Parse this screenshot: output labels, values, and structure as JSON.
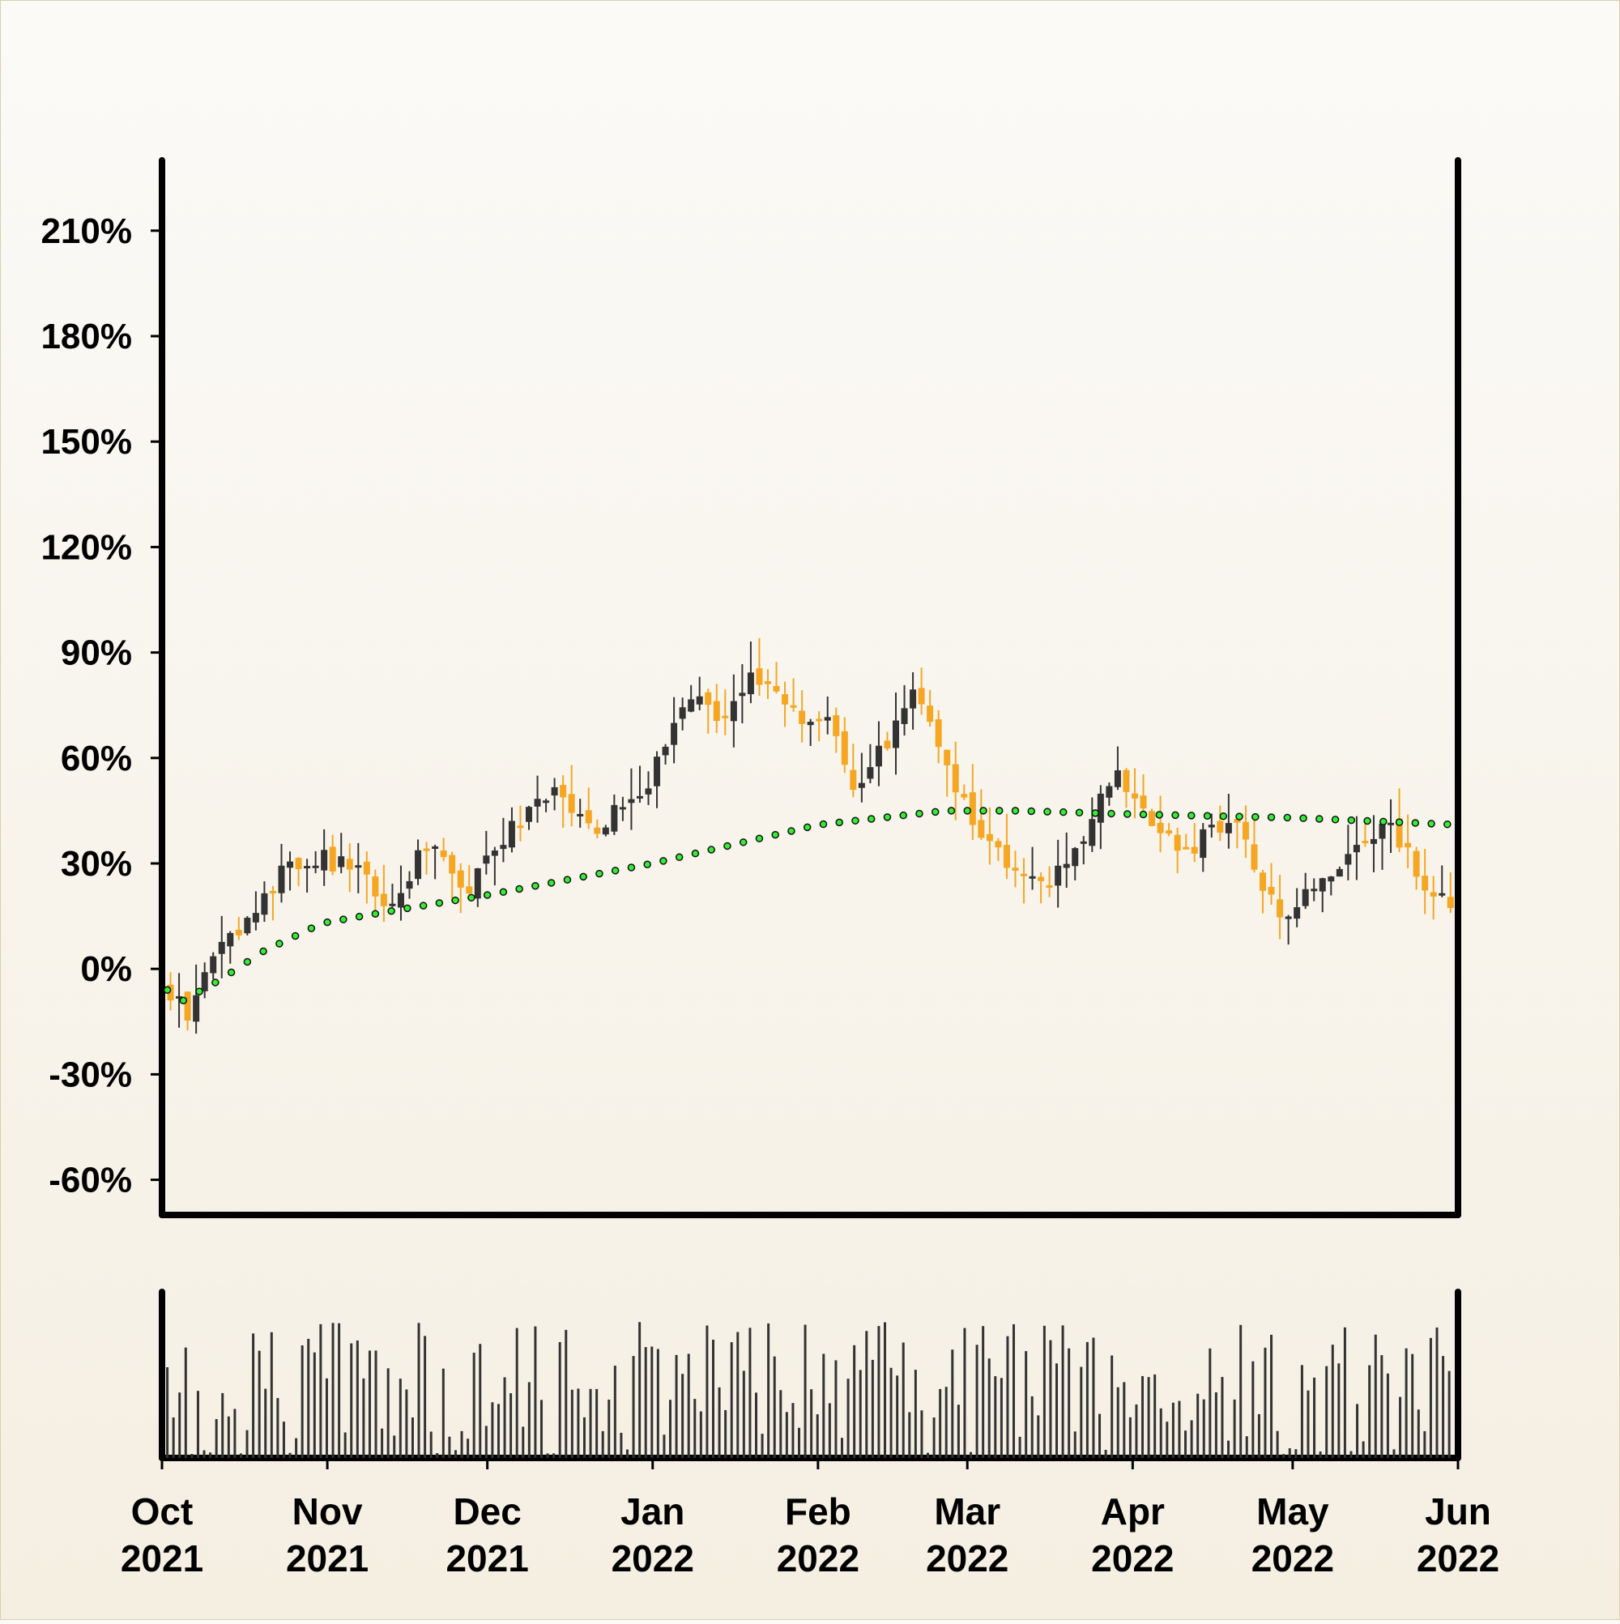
{
  "chart_data": {
    "type": "candlestick",
    "title": "",
    "xlabel": "",
    "ylabel": "",
    "x_range": [
      "2021-10-01",
      "2022-06-01"
    ],
    "ylim": [
      -70,
      230
    ],
    "y_tick_values": [
      -60,
      -30,
      0,
      30,
      60,
      90,
      120,
      150,
      180,
      210
    ],
    "y_tick_labels": [
      "-60%",
      "-30%",
      "0%",
      "30%",
      "60%",
      "90%",
      "120%",
      "150%",
      "180%",
      "210%"
    ],
    "x_ticks": [
      {
        "date": "2021-10-01",
        "month": "Oct",
        "year": "2021"
      },
      {
        "date": "2021-11-01",
        "month": "Nov",
        "year": "2021"
      },
      {
        "date": "2021-12-01",
        "month": "Dec",
        "year": "2021"
      },
      {
        "date": "2022-01-01",
        "month": "Jan",
        "year": "2022"
      },
      {
        "date": "2022-02-01",
        "month": "Feb",
        "year": "2022"
      },
      {
        "date": "2022-03-01",
        "month": "Mar",
        "year": "2022"
      },
      {
        "date": "2022-04-01",
        "month": "Apr",
        "year": "2022"
      },
      {
        "date": "2022-05-01",
        "month": "May",
        "year": "2022"
      },
      {
        "date": "2022-06-01",
        "month": "Jun",
        "year": "2022"
      }
    ],
    "grid": false,
    "colors": {
      "up": "#333333",
      "down": "#f5a623",
      "moving_average": "#33ee33",
      "volume": "#333333",
      "axis": "#000000"
    },
    "price_anchors": [
      {
        "date": "2021-10-01",
        "value": -5
      },
      {
        "date": "2021-10-06",
        "value": -12
      },
      {
        "date": "2021-10-12",
        "value": 5
      },
      {
        "date": "2021-10-17",
        "value": 15
      },
      {
        "date": "2021-10-24",
        "value": 28
      },
      {
        "date": "2021-10-31",
        "value": 32
      },
      {
        "date": "2021-11-08",
        "value": 26
      },
      {
        "date": "2021-11-12",
        "value": 18
      },
      {
        "date": "2021-11-20",
        "value": 35
      },
      {
        "date": "2021-11-27",
        "value": 22
      },
      {
        "date": "2021-12-06",
        "value": 40
      },
      {
        "date": "2021-12-14",
        "value": 50
      },
      {
        "date": "2021-12-22",
        "value": 40
      },
      {
        "date": "2022-01-01",
        "value": 55
      },
      {
        "date": "2022-01-08",
        "value": 78
      },
      {
        "date": "2022-01-14",
        "value": 70
      },
      {
        "date": "2022-01-20",
        "value": 85
      },
      {
        "date": "2022-01-27",
        "value": 72
      },
      {
        "date": "2022-02-03",
        "value": 70
      },
      {
        "date": "2022-02-08",
        "value": 52
      },
      {
        "date": "2022-02-13",
        "value": 62
      },
      {
        "date": "2022-02-19",
        "value": 78
      },
      {
        "date": "2022-02-24",
        "value": 62
      },
      {
        "date": "2022-03-03",
        "value": 38
      },
      {
        "date": "2022-03-10",
        "value": 28
      },
      {
        "date": "2022-03-17",
        "value": 25
      },
      {
        "date": "2022-03-22",
        "value": 35
      },
      {
        "date": "2022-03-27",
        "value": 55
      },
      {
        "date": "2022-04-01",
        "value": 52
      },
      {
        "date": "2022-04-06",
        "value": 38
      },
      {
        "date": "2022-04-13",
        "value": 35
      },
      {
        "date": "2022-04-20",
        "value": 45
      },
      {
        "date": "2022-04-26",
        "value": 20
      },
      {
        "date": "2022-04-30",
        "value": 15
      },
      {
        "date": "2022-05-07",
        "value": 25
      },
      {
        "date": "2022-05-14",
        "value": 38
      },
      {
        "date": "2022-05-20",
        "value": 40
      },
      {
        "date": "2022-05-25",
        "value": 25
      },
      {
        "date": "2022-05-31",
        "value": 18
      },
      {
        "date": "2022-06-01",
        "value": 15
      }
    ],
    "moving_average_anchors": [
      {
        "date": "2021-10-01",
        "value": -5
      },
      {
        "date": "2021-10-05",
        "value": -9
      },
      {
        "date": "2021-10-12",
        "value": -3
      },
      {
        "date": "2021-10-20",
        "value": 5
      },
      {
        "date": "2021-10-31",
        "value": 13
      },
      {
        "date": "2021-11-15",
        "value": 17
      },
      {
        "date": "2021-12-01",
        "value": 21
      },
      {
        "date": "2022-01-01",
        "value": 30
      },
      {
        "date": "2022-02-01",
        "value": 41
      },
      {
        "date": "2022-02-25",
        "value": 45
      },
      {
        "date": "2022-03-10",
        "value": 45
      },
      {
        "date": "2022-04-01",
        "value": 44
      },
      {
        "date": "2022-05-01",
        "value": 43
      },
      {
        "date": "2022-06-01",
        "value": 41
      }
    ]
  }
}
